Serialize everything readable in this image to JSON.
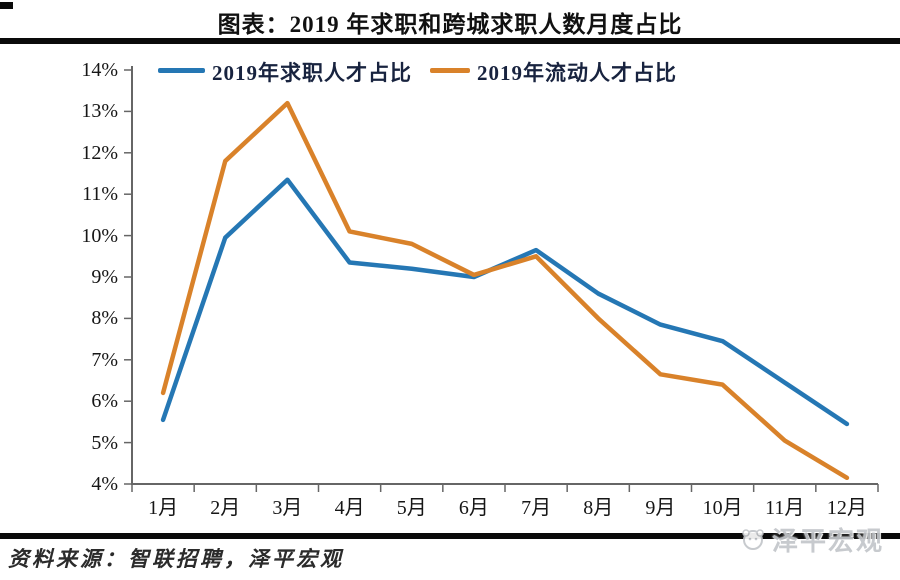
{
  "page": {
    "title": "图表：2019 年求职和跨城求职人数月度占比",
    "source_note": "资料来源：智联招聘，泽平宏观",
    "watermark": "泽平宏观"
  },
  "chart_data": {
    "type": "line",
    "title": "图表：2019 年求职和跨城求职人数月度占比",
    "categories": [
      "1月",
      "2月",
      "3月",
      "4月",
      "5月",
      "6月",
      "7月",
      "8月",
      "9月",
      "10月",
      "11月",
      "12月"
    ],
    "series": [
      {
        "name": "2019年求职人才占比",
        "color": "#2577b4",
        "values": [
          5.55,
          9.95,
          11.35,
          9.35,
          9.2,
          9.0,
          9.65,
          8.6,
          7.85,
          7.45,
          6.45,
          5.45
        ]
      },
      {
        "name": "2019年流动人才占比",
        "color": "#d9822a",
        "values": [
          6.2,
          11.8,
          13.2,
          10.1,
          9.8,
          9.05,
          9.5,
          8.0,
          6.65,
          6.4,
          5.05,
          4.15
        ]
      }
    ],
    "xlabel": "",
    "ylabel": "",
    "ylim": [
      4,
      14
    ],
    "ytick_step": 1,
    "ytick_labels": [
      "4%",
      "5%",
      "6%",
      "7%",
      "8%",
      "9%",
      "10%",
      "11%",
      "12%",
      "13%",
      "14%"
    ],
    "legend_position": "top",
    "grid": false,
    "axis_color": "#666666",
    "text_color": "#161616"
  }
}
